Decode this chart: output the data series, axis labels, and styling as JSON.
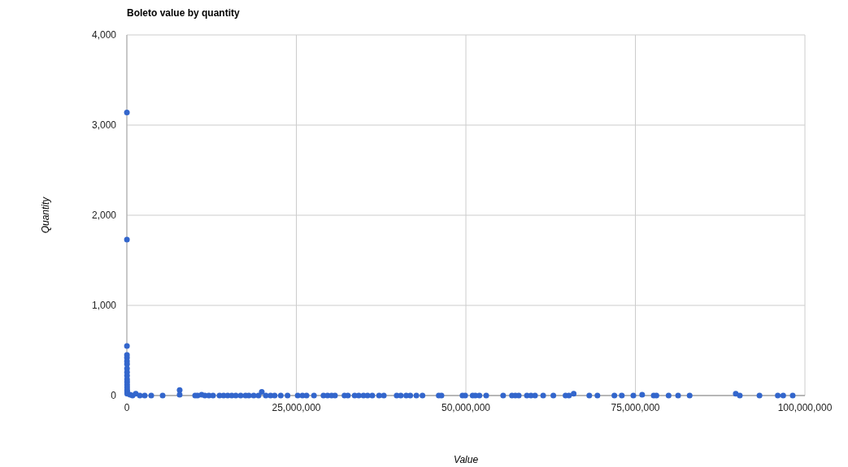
{
  "chart_data": {
    "type": "scatter",
    "title": "Boleto value by quantity",
    "xlabel": "Value",
    "ylabel": "Quantity",
    "xlim": [
      0,
      100000000
    ],
    "xticks": [
      {
        "value": 0,
        "label": "0"
      },
      {
        "value": 25000000,
        "label": "25,000,000"
      },
      {
        "value": 50000000,
        "label": "50,000,000"
      },
      {
        "value": 75000000,
        "label": "75,000,000"
      },
      {
        "value": 100000000,
        "label": "100,000,000"
      }
    ],
    "ylim": [
      0,
      4000
    ],
    "yticks": [
      {
        "value": 0,
        "label": "0"
      },
      {
        "value": 1000,
        "label": "1,000"
      },
      {
        "value": 2000,
        "label": "2,000"
      },
      {
        "value": 3000,
        "label": "3,000"
      },
      {
        "value": 4000,
        "label": "4,000"
      }
    ],
    "grid": true,
    "marker": "circle",
    "series": [
      {
        "color": "#3366cc",
        "x": [
          10000,
          12000,
          15000,
          18000,
          20000,
          22000,
          25000,
          28000,
          30000,
          32000,
          35000,
          38000,
          40000,
          42000,
          45000,
          48000,
          50000,
          480000,
          840000,
          1320000,
          1920000,
          2640000,
          3600000,
          5280000,
          7790000,
          7790000,
          10070000,
          10430000,
          11030000,
          11510000,
          12110000,
          12710000,
          13670000,
          14270000,
          14870000,
          15470000,
          16070000,
          16790000,
          17510000,
          17990000,
          18710000,
          19420000,
          19900000,
          20500000,
          21200000,
          21800000,
          22700000,
          23700000,
          25200000,
          25900000,
          26500000,
          27600000,
          29000000,
          29600000,
          30200000,
          30700000,
          32100000,
          32600000,
          33600000,
          34200000,
          34900000,
          35500000,
          36200000,
          37200000,
          37900000,
          39800000,
          40400000,
          41200000,
          41800000,
          42700000,
          43600000,
          46000000,
          46400000,
          49500000,
          49900000,
          51000000,
          51400000,
          52000000,
          53000000,
          55500000,
          56800000,
          57300000,
          57800000,
          59000000,
          59600000,
          60200000,
          61400000,
          62900000,
          64700000,
          65200000,
          65900000,
          68200000,
          69400000,
          71900000,
          73000000,
          74700000,
          76000000,
          77700000,
          78100000,
          79900000,
          81300000,
          83000000,
          89800000,
          90400000,
          93300000,
          96000000,
          96800000,
          98200000
        ],
        "values": [
          3140,
          1730,
          550,
          450,
          420,
          380,
          350,
          300,
          260,
          220,
          180,
          150,
          120,
          90,
          60,
          40,
          20,
          10,
          0,
          20,
          0,
          0,
          0,
          0,
          60,
          10,
          0,
          0,
          10,
          0,
          0,
          0,
          0,
          0,
          0,
          0,
          0,
          0,
          0,
          0,
          0,
          0,
          40,
          0,
          0,
          0,
          0,
          0,
          0,
          0,
          0,
          0,
          0,
          0,
          0,
          0,
          0,
          0,
          0,
          0,
          0,
          0,
          0,
          0,
          0,
          0,
          0,
          0,
          0,
          0,
          0,
          0,
          0,
          0,
          0,
          0,
          0,
          0,
          0,
          0,
          0,
          0,
          0,
          0,
          0,
          0,
          0,
          0,
          0,
          0,
          20,
          0,
          0,
          0,
          0,
          0,
          10,
          0,
          0,
          0,
          0,
          0,
          20,
          0,
          0,
          0,
          0,
          0
        ]
      }
    ]
  }
}
